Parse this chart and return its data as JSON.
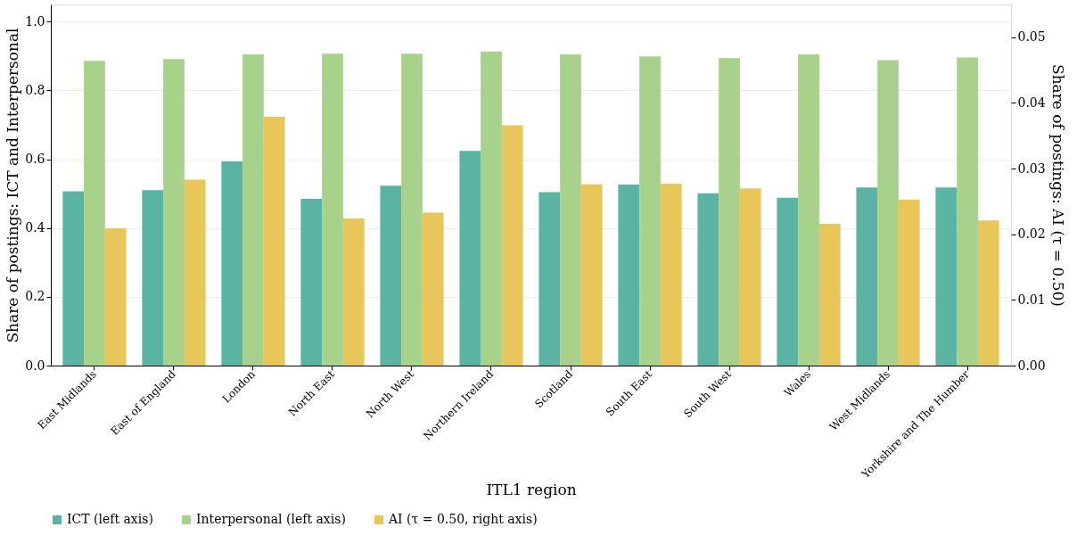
{
  "chart_data": {
    "type": "bar",
    "xlabel": "ITL1 region",
    "ylabel": "Share of postings: ICT and Interpersonal",
    "y2label": "Share of postings: AI (τ = 0.50)",
    "categories": [
      "East Midlands",
      "East of England",
      "London",
      "North East",
      "North West",
      "Northern Ireland",
      "Scotland",
      "South East",
      "South West",
      "Wales",
      "West Midlands",
      "Yorkshire and The Humber"
    ],
    "series": [
      {
        "name": "ICT (left axis)",
        "color": "#5bb3a4",
        "values": [
          0.507,
          0.51,
          0.594,
          0.485,
          0.523,
          0.624,
          0.504,
          0.526,
          0.501,
          0.488,
          0.518,
          0.518
        ]
      },
      {
        "name": "Interpersonal (left axis)",
        "color": "#a8d18b",
        "values": [
          0.886,
          0.891,
          0.905,
          0.907,
          0.907,
          0.913,
          0.905,
          0.899,
          0.894,
          0.905,
          0.888,
          0.896
        ]
      },
      {
        "name": "AI (τ = 0.50, right axis)",
        "color": "#e9c65a",
        "axis": "y2",
        "values": [
          0.0209,
          0.0283,
          0.0379,
          0.0224,
          0.0233,
          0.0366,
          0.0276,
          0.0277,
          0.027,
          0.0216,
          0.0253,
          0.0221
        ]
      }
    ],
    "ylim": [
      0,
      1.05
    ],
    "yticks": [
      {
        "value": 0,
        "label": "0.0"
      },
      {
        "value": 0.2,
        "label": "0.2"
      },
      {
        "value": 0.4,
        "label": "0.4"
      },
      {
        "value": 0.6,
        "label": "0.6"
      },
      {
        "value": 0.8,
        "label": "0.8"
      },
      {
        "value": 1,
        "label": "1.0"
      }
    ],
    "y2lim": [
      0,
      0.055
    ],
    "y2ticks": [
      {
        "value": 0,
        "label": "0.00"
      },
      {
        "value": 0.01,
        "label": "0.01"
      },
      {
        "value": 0.02,
        "label": "0.02"
      },
      {
        "value": 0.03,
        "label": "0.03"
      },
      {
        "value": 0.04,
        "label": "0.04"
      },
      {
        "value": 0.05,
        "label": "0.05"
      }
    ],
    "grid": "y",
    "legend": "bottom"
  }
}
